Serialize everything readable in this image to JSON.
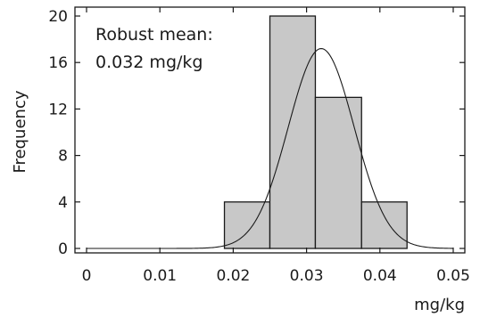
{
  "chart_data": {
    "type": "bar",
    "subtype": "histogram with fitted normal curve",
    "xlabel": "mg/kg",
    "ylabel": "Frequency",
    "xlim": [
      0,
      0.05
    ],
    "ylim": [
      0,
      20
    ],
    "xticks": [
      0,
      0.01,
      0.02,
      0.03,
      0.04,
      0.05
    ],
    "yticks": [
      0,
      4,
      8,
      12,
      16,
      20
    ],
    "xtick_labels": [
      "0",
      "0.01",
      "0.02",
      "0.03",
      "0.04",
      "0.05"
    ],
    "ytick_labels": [
      "0",
      "4",
      "8",
      "12",
      "16",
      "20"
    ],
    "bins": [
      {
        "start": 0.0188,
        "end": 0.025,
        "value": 4
      },
      {
        "start": 0.025,
        "end": 0.0312,
        "value": 20
      },
      {
        "start": 0.0312,
        "end": 0.0375,
        "value": 13
      },
      {
        "start": 0.0375,
        "end": 0.0437,
        "value": 4
      }
    ],
    "curve": {
      "type": "normal",
      "mean": 0.032,
      "sd": 0.0045,
      "peak": 17.2,
      "x_range": [
        0,
        0.05
      ]
    },
    "annotation": {
      "line1": "Robust mean:",
      "line2": "0.032 mg/kg"
    },
    "grid": false,
    "colors": {
      "bar_fill": "#c8c8c8",
      "bar_stroke": "#1a1a1a",
      "curve": "#1a1a1a",
      "axis": "#1a1a1a"
    }
  }
}
